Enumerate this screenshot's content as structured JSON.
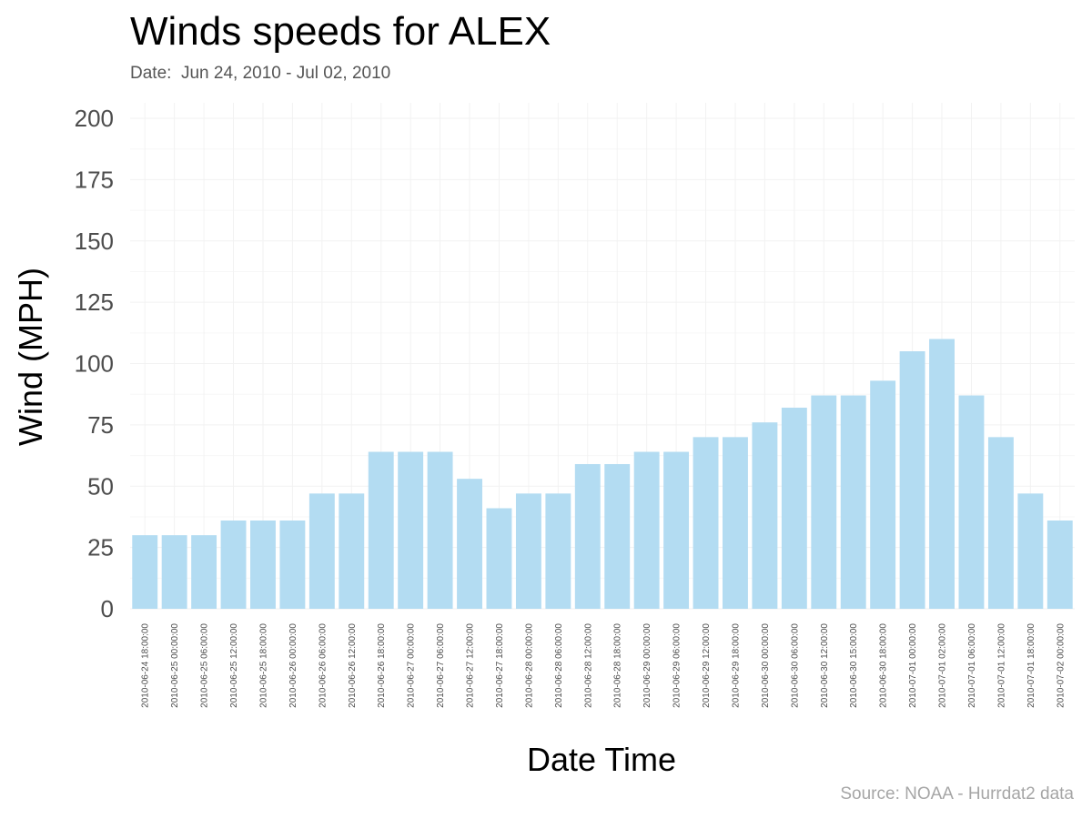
{
  "header": {
    "title": "Winds speeds for ALEX",
    "subtitle": "Date:  Jun 24, 2010 - Jul 02, 2010"
  },
  "footer": {
    "caption": "Source: NOAA - Hurrdat2 data"
  },
  "colors": {
    "bar": "#b3dcf2",
    "grid": "#f2f2f2",
    "axis_text": "#4d4d4d"
  },
  "chart_data": {
    "type": "bar",
    "title": "Winds speeds for ALEX",
    "subtitle": "Date:  Jun 24, 2010 - Jul 02, 2010",
    "xlabel": "Date Time",
    "ylabel": "Wind (MPH)",
    "ylim": [
      0,
      200
    ],
    "yticks": [
      0,
      25,
      50,
      75,
      100,
      125,
      150,
      175,
      200
    ],
    "grid": true,
    "categories": [
      "2010-06-24 18:00:00",
      "2010-06-25 00:00:00",
      "2010-06-25 06:00:00",
      "2010-06-25 12:00:00",
      "2010-06-25 18:00:00",
      "2010-06-26 00:00:00",
      "2010-06-26 06:00:00",
      "2010-06-26 12:00:00",
      "2010-06-26 18:00:00",
      "2010-06-27 00:00:00",
      "2010-06-27 06:00:00",
      "2010-06-27 12:00:00",
      "2010-06-27 18:00:00",
      "2010-06-28 00:00:00",
      "2010-06-28 06:00:00",
      "2010-06-28 12:00:00",
      "2010-06-28 18:00:00",
      "2010-06-29 00:00:00",
      "2010-06-29 06:00:00",
      "2010-06-29 12:00:00",
      "2010-06-29 18:00:00",
      "2010-06-30 00:00:00",
      "2010-06-30 06:00:00",
      "2010-06-30 12:00:00",
      "2010-06-30 15:00:00",
      "2010-06-30 18:00:00",
      "2010-07-01 00:00:00",
      "2010-07-01 02:00:00",
      "2010-07-01 06:00:00",
      "2010-07-01 12:00:00",
      "2010-07-01 18:00:00",
      "2010-07-02 00:00:00"
    ],
    "values": [
      30,
      30,
      30,
      36,
      36,
      36,
      47,
      47,
      64,
      64,
      64,
      53,
      41,
      47,
      47,
      59,
      59,
      64,
      64,
      70,
      70,
      76,
      82,
      87,
      87,
      93,
      105,
      110,
      87,
      70,
      47,
      36
    ]
  }
}
